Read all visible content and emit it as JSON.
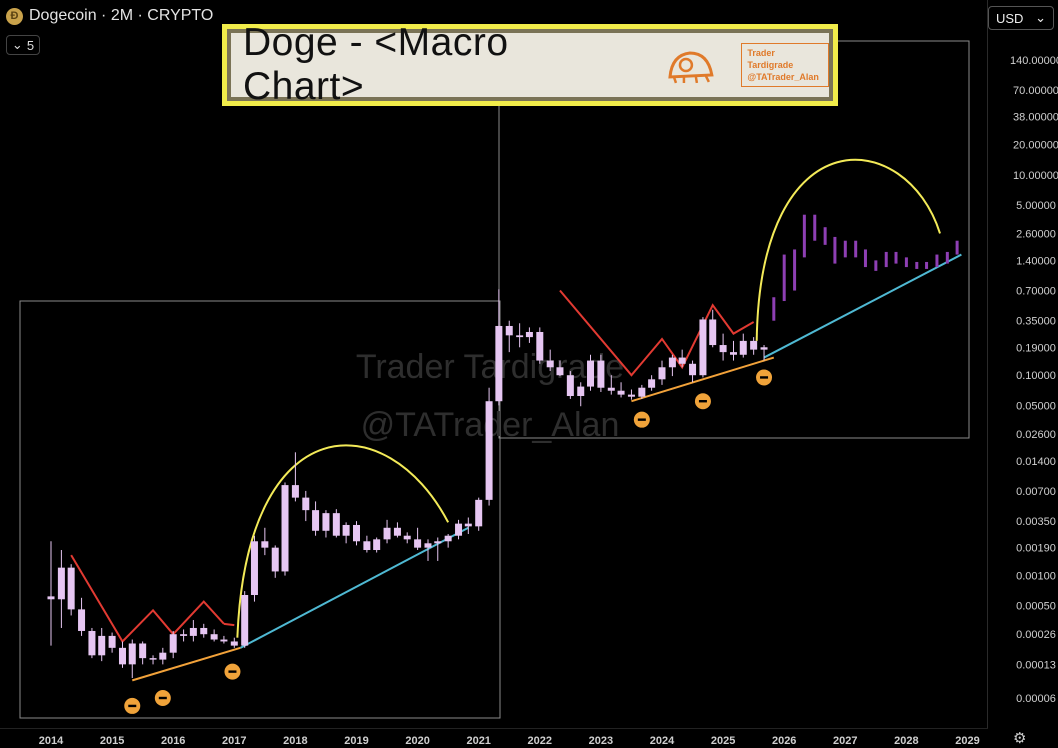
{
  "header": {
    "coin_glyph": "Ð",
    "title": "Dogecoin · 2M · CRYPTO",
    "level": "5"
  },
  "currency": {
    "label": "USD"
  },
  "banner": {
    "title": "Doge - <Macro Chart>",
    "logo_line1": "Trader Tardigrade",
    "logo_line2": "@TATrader_Alan"
  },
  "watermark": {
    "line1": "Trader Tardigrade",
    "line2": "@TATrader_Alan"
  },
  "chart_data": {
    "type": "candlestick",
    "title": "Doge - <Macro Chart>",
    "scale": "log",
    "y_ticks": [
      "140.00000",
      "70.00000",
      "38.00000",
      "20.00000",
      "10.00000",
      "5.00000",
      "2.60000",
      "1.40000",
      "0.70000",
      "0.35000",
      "0.19000",
      "0.10000",
      "0.05000",
      "0.02600",
      "0.01400",
      "0.00700",
      "0.00350",
      "0.00190",
      "0.00100",
      "0.00050",
      "0.00026",
      "0.00013",
      "0.00006"
    ],
    "x_ticks": [
      "2014",
      "2015",
      "2016",
      "2017",
      "2018",
      "2019",
      "2020",
      "2021",
      "2022",
      "2023",
      "2024",
      "2025",
      "2026",
      "2027",
      "2028",
      "2029"
    ],
    "ylim": [
      4e-05,
      200
    ],
    "xlim": [
      2013.9,
      2029.1
    ],
    "candles": [
      {
        "t": 2014.0,
        "o": 0.00062,
        "h": 0.0022,
        "l": 0.0002,
        "c": 0.00058
      },
      {
        "t": 2014.17,
        "o": 0.00058,
        "h": 0.0018,
        "l": 0.0003,
        "c": 0.0012
      },
      {
        "t": 2014.33,
        "o": 0.0012,
        "h": 0.0013,
        "l": 0.0004,
        "c": 0.00046
      },
      {
        "t": 2014.5,
        "o": 0.00046,
        "h": 0.0006,
        "l": 0.00025,
        "c": 0.00028
      },
      {
        "t": 2014.67,
        "o": 0.00028,
        "h": 0.0003,
        "l": 0.00015,
        "c": 0.00016
      },
      {
        "t": 2014.83,
        "o": 0.00016,
        "h": 0.0003,
        "l": 0.00014,
        "c": 0.00025
      },
      {
        "t": 2015.0,
        "o": 0.00025,
        "h": 0.00027,
        "l": 0.00017,
        "c": 0.00019
      },
      {
        "t": 2015.17,
        "o": 0.00019,
        "h": 0.00022,
        "l": 0.00012,
        "c": 0.00013
      },
      {
        "t": 2015.33,
        "o": 0.00013,
        "h": 0.00023,
        "l": 9.5e-05,
        "c": 0.00021
      },
      {
        "t": 2015.5,
        "o": 0.00021,
        "h": 0.00022,
        "l": 0.00013,
        "c": 0.00015
      },
      {
        "t": 2015.67,
        "o": 0.00015,
        "h": 0.00016,
        "l": 0.00013,
        "c": 0.000145
      },
      {
        "t": 2015.83,
        "o": 0.000145,
        "h": 0.00019,
        "l": 0.00013,
        "c": 0.00017
      },
      {
        "t": 2016.0,
        "o": 0.00017,
        "h": 0.00028,
        "l": 0.00015,
        "c": 0.00026
      },
      {
        "t": 2016.17,
        "o": 0.00026,
        "h": 0.00029,
        "l": 0.00022,
        "c": 0.00025
      },
      {
        "t": 2016.33,
        "o": 0.00025,
        "h": 0.00036,
        "l": 0.00022,
        "c": 0.0003
      },
      {
        "t": 2016.5,
        "o": 0.0003,
        "h": 0.00033,
        "l": 0.00024,
        "c": 0.00026
      },
      {
        "t": 2016.67,
        "o": 0.00026,
        "h": 0.00029,
        "l": 0.00022,
        "c": 0.00023
      },
      {
        "t": 2016.83,
        "o": 0.00023,
        "h": 0.00025,
        "l": 0.00021,
        "c": 0.00022
      },
      {
        "t": 2017.0,
        "o": 0.00022,
        "h": 0.00024,
        "l": 0.00019,
        "c": 0.0002
      },
      {
        "t": 2017.17,
        "o": 0.0002,
        "h": 0.0007,
        "l": 0.00019,
        "c": 0.00064
      },
      {
        "t": 2017.33,
        "o": 0.00064,
        "h": 0.0025,
        "l": 0.00055,
        "c": 0.0022
      },
      {
        "t": 2017.5,
        "o": 0.0022,
        "h": 0.003,
        "l": 0.0016,
        "c": 0.0019
      },
      {
        "t": 2017.67,
        "o": 0.0019,
        "h": 0.002,
        "l": 0.00095,
        "c": 0.0011
      },
      {
        "t": 2017.83,
        "o": 0.0011,
        "h": 0.0085,
        "l": 0.001,
        "c": 0.008
      },
      {
        "t": 2018.0,
        "o": 0.008,
        "h": 0.017,
        "l": 0.0055,
        "c": 0.006
      },
      {
        "t": 2018.17,
        "o": 0.006,
        "h": 0.007,
        "l": 0.0035,
        "c": 0.0045
      },
      {
        "t": 2018.33,
        "o": 0.0045,
        "h": 0.0055,
        "l": 0.0025,
        "c": 0.0028
      },
      {
        "t": 2018.5,
        "o": 0.0028,
        "h": 0.0045,
        "l": 0.0024,
        "c": 0.0042
      },
      {
        "t": 2018.67,
        "o": 0.0042,
        "h": 0.0046,
        "l": 0.0024,
        "c": 0.0025
      },
      {
        "t": 2018.83,
        "o": 0.0025,
        "h": 0.0034,
        "l": 0.0021,
        "c": 0.0032
      },
      {
        "t": 2019.0,
        "o": 0.0032,
        "h": 0.0035,
        "l": 0.002,
        "c": 0.0022
      },
      {
        "t": 2019.17,
        "o": 0.0022,
        "h": 0.0025,
        "l": 0.0017,
        "c": 0.0018
      },
      {
        "t": 2019.33,
        "o": 0.0018,
        "h": 0.0024,
        "l": 0.0017,
        "c": 0.0023
      },
      {
        "t": 2019.5,
        "o": 0.0023,
        "h": 0.0036,
        "l": 0.0021,
        "c": 0.003
      },
      {
        "t": 2019.67,
        "o": 0.003,
        "h": 0.0034,
        "l": 0.0024,
        "c": 0.0025
      },
      {
        "t": 2019.83,
        "o": 0.0025,
        "h": 0.0027,
        "l": 0.0021,
        "c": 0.0023
      },
      {
        "t": 2020.0,
        "o": 0.0023,
        "h": 0.003,
        "l": 0.0018,
        "c": 0.0019
      },
      {
        "t": 2020.17,
        "o": 0.0019,
        "h": 0.0023,
        "l": 0.0014,
        "c": 0.0021
      },
      {
        "t": 2020.33,
        "o": 0.0021,
        "h": 0.0024,
        "l": 0.0014,
        "c": 0.0022
      },
      {
        "t": 2020.5,
        "o": 0.0022,
        "h": 0.0026,
        "l": 0.0019,
        "c": 0.0025
      },
      {
        "t": 2020.67,
        "o": 0.0025,
        "h": 0.0036,
        "l": 0.0023,
        "c": 0.0033
      },
      {
        "t": 2020.83,
        "o": 0.0033,
        "h": 0.0038,
        "l": 0.0026,
        "c": 0.0031
      },
      {
        "t": 2021.0,
        "o": 0.0031,
        "h": 0.006,
        "l": 0.0028,
        "c": 0.0057
      },
      {
        "t": 2021.17,
        "o": 0.0057,
        "h": 0.075,
        "l": 0.005,
        "c": 0.055
      },
      {
        "t": 2021.33,
        "o": 0.055,
        "h": 0.72,
        "l": 0.05,
        "c": 0.31
      },
      {
        "t": 2021.5,
        "o": 0.31,
        "h": 0.35,
        "l": 0.17,
        "c": 0.25
      },
      {
        "t": 2021.67,
        "o": 0.25,
        "h": 0.33,
        "l": 0.19,
        "c": 0.24
      },
      {
        "t": 2021.83,
        "o": 0.24,
        "h": 0.3,
        "l": 0.21,
        "c": 0.27
      },
      {
        "t": 2022.0,
        "o": 0.27,
        "h": 0.3,
        "l": 0.13,
        "c": 0.14
      },
      {
        "t": 2022.17,
        "o": 0.14,
        "h": 0.18,
        "l": 0.11,
        "c": 0.12
      },
      {
        "t": 2022.33,
        "o": 0.12,
        "h": 0.14,
        "l": 0.098,
        "c": 0.1
      },
      {
        "t": 2022.5,
        "o": 0.1,
        "h": 0.11,
        "l": 0.058,
        "c": 0.062
      },
      {
        "t": 2022.67,
        "o": 0.062,
        "h": 0.085,
        "l": 0.049,
        "c": 0.077
      },
      {
        "t": 2022.83,
        "o": 0.077,
        "h": 0.16,
        "l": 0.07,
        "c": 0.14
      },
      {
        "t": 2023.0,
        "o": 0.14,
        "h": 0.16,
        "l": 0.068,
        "c": 0.075
      },
      {
        "t": 2023.17,
        "o": 0.075,
        "h": 0.1,
        "l": 0.064,
        "c": 0.07
      },
      {
        "t": 2023.33,
        "o": 0.07,
        "h": 0.085,
        "l": 0.06,
        "c": 0.064
      },
      {
        "t": 2023.5,
        "o": 0.064,
        "h": 0.072,
        "l": 0.057,
        "c": 0.061
      },
      {
        "t": 2023.67,
        "o": 0.061,
        "h": 0.08,
        "l": 0.058,
        "c": 0.075
      },
      {
        "t": 2023.83,
        "o": 0.075,
        "h": 0.1,
        "l": 0.07,
        "c": 0.091
      },
      {
        "t": 2024.0,
        "o": 0.091,
        "h": 0.14,
        "l": 0.08,
        "c": 0.12
      },
      {
        "t": 2024.17,
        "o": 0.12,
        "h": 0.16,
        "l": 0.098,
        "c": 0.15
      },
      {
        "t": 2024.33,
        "o": 0.15,
        "h": 0.18,
        "l": 0.12,
        "c": 0.13
      },
      {
        "t": 2024.5,
        "o": 0.13,
        "h": 0.14,
        "l": 0.085,
        "c": 0.1
      },
      {
        "t": 2024.67,
        "o": 0.1,
        "h": 0.38,
        "l": 0.095,
        "c": 0.36
      },
      {
        "t": 2024.83,
        "o": 0.36,
        "h": 0.45,
        "l": 0.19,
        "c": 0.2
      },
      {
        "t": 2025.0,
        "o": 0.2,
        "h": 0.26,
        "l": 0.14,
        "c": 0.17
      },
      {
        "t": 2025.17,
        "o": 0.17,
        "h": 0.22,
        "l": 0.14,
        "c": 0.16
      },
      {
        "t": 2025.33,
        "o": 0.16,
        "h": 0.26,
        "l": 0.15,
        "c": 0.22
      },
      {
        "t": 2025.5,
        "o": 0.22,
        "h": 0.24,
        "l": 0.16,
        "c": 0.18
      },
      {
        "t": 2025.67,
        "o": 0.18,
        "h": 0.2,
        "l": 0.14,
        "c": 0.19
      }
    ],
    "projection": [
      {
        "t": 2025.83,
        "lo": 0.35,
        "hi": 0.6
      },
      {
        "t": 2026.0,
        "lo": 0.55,
        "hi": 1.6
      },
      {
        "t": 2026.17,
        "lo": 0.7,
        "hi": 1.8
      },
      {
        "t": 2026.33,
        "lo": 1.5,
        "hi": 4.0
      },
      {
        "t": 2026.5,
        "lo": 2.2,
        "hi": 4.0
      },
      {
        "t": 2026.67,
        "lo": 2.0,
        "hi": 3.0
      },
      {
        "t": 2026.83,
        "lo": 1.3,
        "hi": 2.4
      },
      {
        "t": 2027.0,
        "lo": 1.5,
        "hi": 2.2
      },
      {
        "t": 2027.17,
        "lo": 1.5,
        "hi": 2.2
      },
      {
        "t": 2027.33,
        "lo": 1.2,
        "hi": 1.8
      },
      {
        "t": 2027.5,
        "lo": 1.1,
        "hi": 1.4
      },
      {
        "t": 2027.67,
        "lo": 1.2,
        "hi": 1.7
      },
      {
        "t": 2027.83,
        "lo": 1.3,
        "hi": 1.7
      },
      {
        "t": 2028.0,
        "lo": 1.2,
        "hi": 1.5
      },
      {
        "t": 2028.17,
        "lo": 1.15,
        "hi": 1.35
      },
      {
        "t": 2028.33,
        "lo": 1.15,
        "hi": 1.35
      },
      {
        "t": 2028.5,
        "lo": 1.2,
        "hi": 1.6
      },
      {
        "t": 2028.67,
        "lo": 1.3,
        "hi": 1.7
      },
      {
        "t": 2028.83,
        "lo": 1.6,
        "hi": 2.2
      }
    ],
    "colors": {
      "candle": "#e6c6f2",
      "projection": "#8e3fb4",
      "red_zigzag": "#e23a32",
      "orange_support": "#f2a23a",
      "blue_trend": "#4fb9d3",
      "yellow_arc": "#f3ea58",
      "box": "#8a8a8a",
      "markers": "#f0a33a"
    }
  }
}
